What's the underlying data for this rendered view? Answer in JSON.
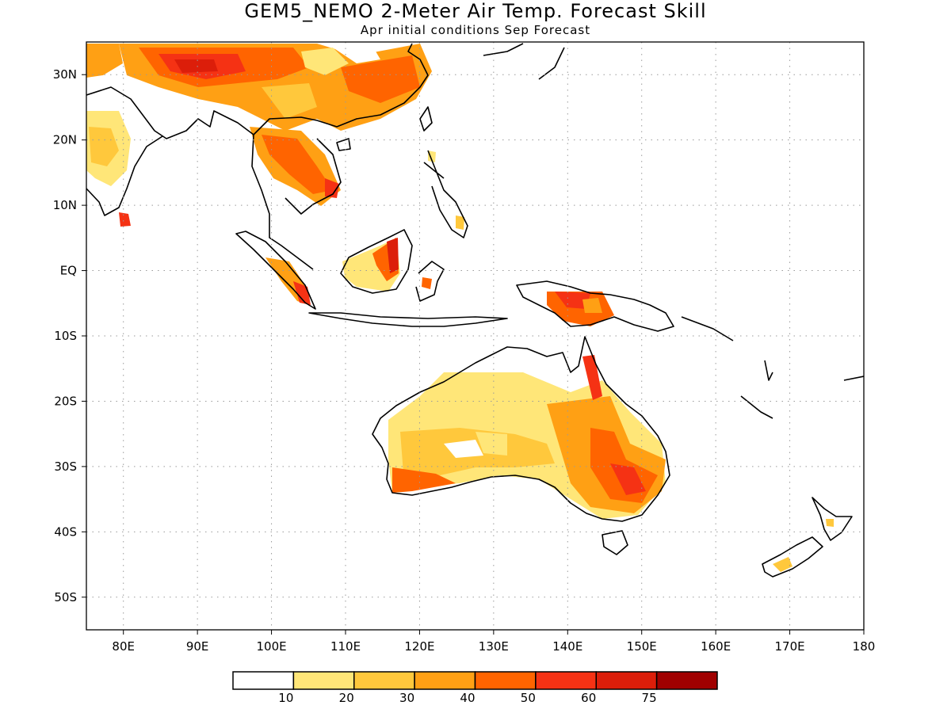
{
  "title": "GEM5_NEMO 2-Meter Air Temp. Forecast Skill",
  "subtitle": "Apr initial conditions  Sep Forecast",
  "axes": {
    "lon_ticks": [
      "80E",
      "90E",
      "100E",
      "110E",
      "120E",
      "130E",
      "140E",
      "150E",
      "160E",
      "170E",
      "180"
    ],
    "lon_values": [
      80,
      90,
      100,
      110,
      120,
      130,
      140,
      150,
      160,
      170,
      180
    ],
    "lat_ticks": [
      "30N",
      "20N",
      "10N",
      "EQ",
      "10S",
      "20S",
      "30S",
      "40S",
      "50S"
    ],
    "lat_values": [
      30,
      20,
      10,
      0,
      -10,
      -20,
      -30,
      -40,
      -50
    ],
    "lon_range": [
      75,
      180
    ],
    "lat_range": [
      -55,
      35
    ],
    "grid": "dotted"
  },
  "colorbar": {
    "labels": [
      "10",
      "20",
      "30",
      "40",
      "50",
      "60",
      "75"
    ],
    "colors": [
      "#ffffff",
      "#ffe678",
      "#ffc83c",
      "#ffa014",
      "#ff6400",
      "#f53214",
      "#dc1e0a",
      "#a00000"
    ]
  },
  "skill_regions": [
    {
      "name": "south-asia",
      "level": 2
    },
    {
      "name": "tibet-china",
      "level": 4
    },
    {
      "name": "indochina",
      "level": 4
    },
    {
      "name": "borneo",
      "level": 5
    },
    {
      "name": "sumatra",
      "level": 4
    },
    {
      "name": "new-guinea",
      "level": 5
    },
    {
      "name": "australia-west",
      "level": 2
    },
    {
      "name": "australia-east",
      "level": 4
    },
    {
      "name": "new-zealand",
      "level": 2
    }
  ]
}
